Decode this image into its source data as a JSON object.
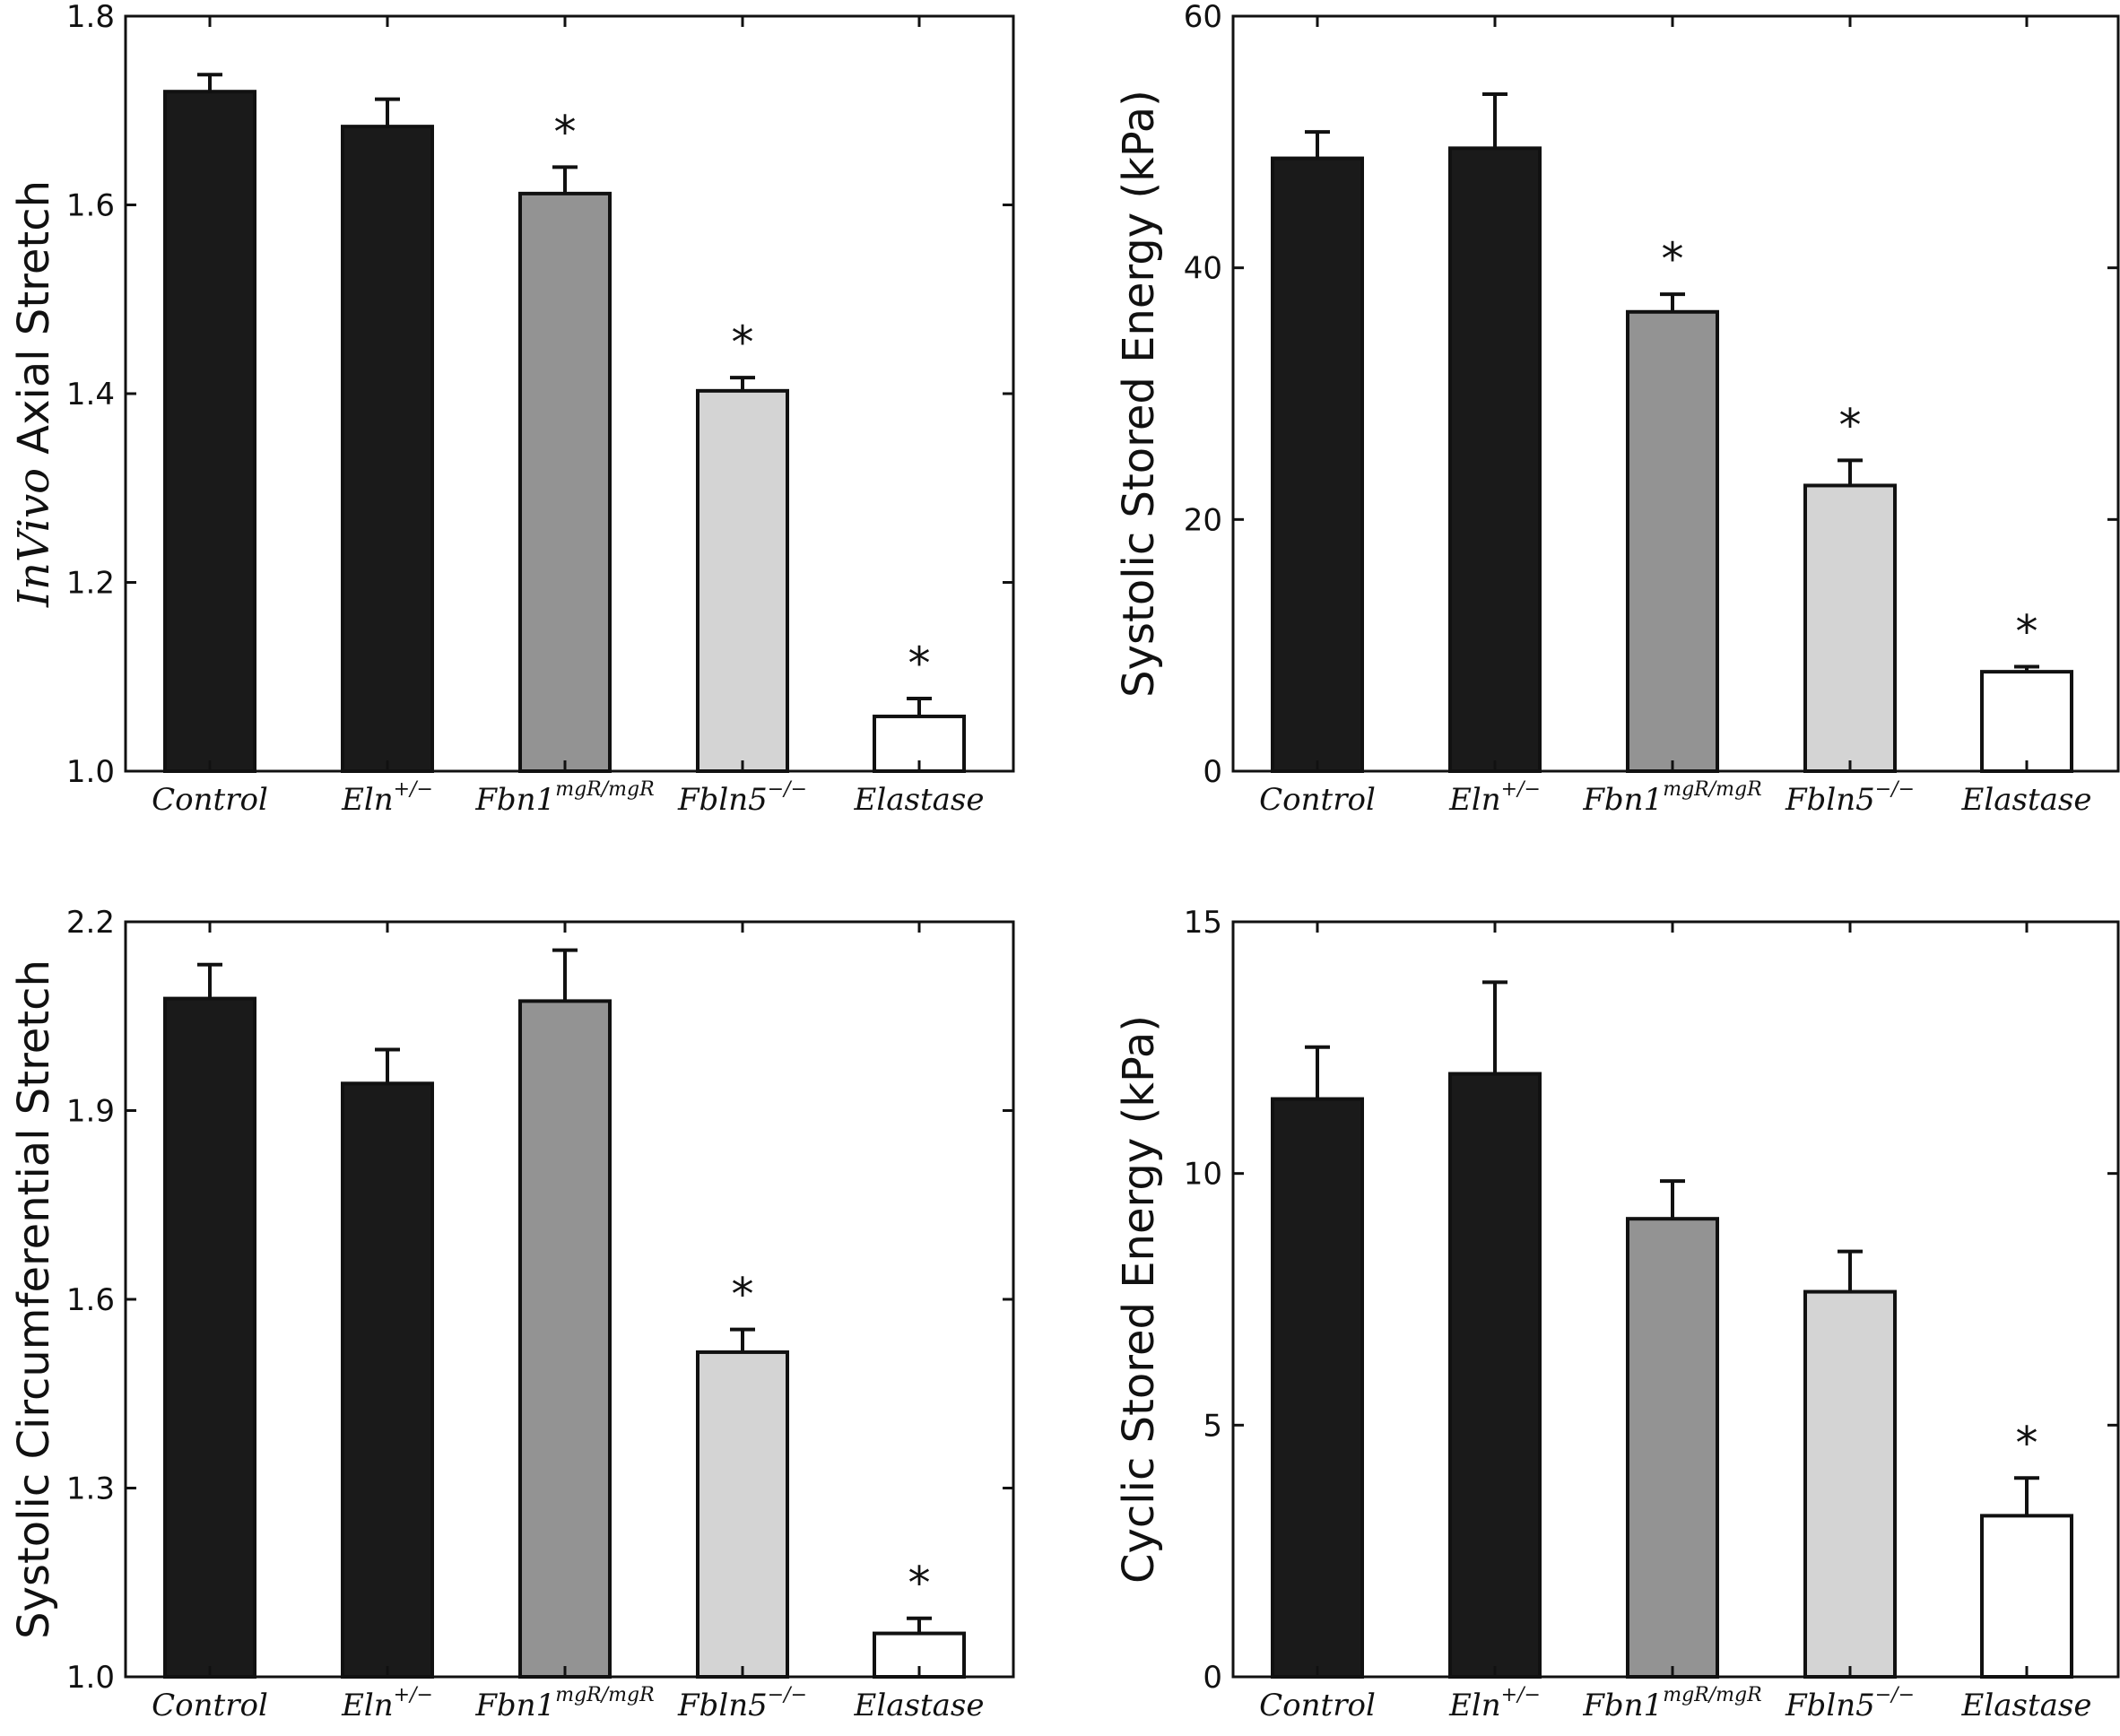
{
  "chart_data": [
    {
      "id": "invivo-axial",
      "type": "bar",
      "ylabel_italic": "InVivo",
      "ylabel": "Axial Stretch",
      "ylim": [
        1.0,
        1.8
      ],
      "yticks": [
        "1.0",
        "1.2",
        "1.4",
        "1.6",
        "1.8"
      ],
      "ytick_values": [
        1.0,
        1.2,
        1.4,
        1.6,
        1.8
      ],
      "categories": [
        {
          "base": "Control",
          "sup": ""
        },
        {
          "base": "Eln",
          "sup": "+/−"
        },
        {
          "base": "Fbn1",
          "sup": "mgR/mgR"
        },
        {
          "base": "Fbln5",
          "sup": "−/−"
        },
        {
          "base": "Elastase",
          "sup": ""
        }
      ],
      "values": [
        1.72,
        1.683,
        1.612,
        1.403,
        1.058
      ],
      "errors": [
        0.018,
        0.029,
        0.028,
        0.014,
        0.019
      ],
      "significant": [
        false,
        false,
        true,
        true,
        true
      ],
      "star": "*"
    },
    {
      "id": "systolic-energy",
      "type": "bar",
      "ylabel": "Systolic Stored Energy (kPa)",
      "ylim": [
        0,
        60
      ],
      "yticks": [
        "0",
        "20",
        "40",
        "60"
      ],
      "ytick_values": [
        0,
        20,
        40,
        60
      ],
      "categories": [
        {
          "base": "Control",
          "sup": ""
        },
        {
          "base": "Eln",
          "sup": "+/−"
        },
        {
          "base": "Fbn1",
          "sup": "mgR/mgR"
        },
        {
          "base": "Fbln5",
          "sup": "−/−"
        },
        {
          "base": "Elastase",
          "sup": ""
        }
      ],
      "values": [
        48.7,
        49.5,
        36.5,
        22.7,
        7.9
      ],
      "errors": [
        2.1,
        4.3,
        1.4,
        2.0,
        0.4
      ],
      "significant": [
        false,
        false,
        true,
        true,
        true
      ],
      "star": "*"
    },
    {
      "id": "systolic-circ",
      "type": "bar",
      "ylabel": "Systolic Circumferential Stretch",
      "ylim": [
        1.0,
        2.2
      ],
      "yticks": [
        "1.0",
        "1.3",
        "1.6",
        "1.9",
        "2.2"
      ],
      "ytick_values": [
        1.0,
        1.3,
        1.6,
        1.9,
        2.2
      ],
      "categories": [
        {
          "base": "Control",
          "sup": ""
        },
        {
          "base": "Eln",
          "sup": "+/−"
        },
        {
          "base": "Fbn1",
          "sup": "mgR/mgR"
        },
        {
          "base": "Fbln5",
          "sup": "−/−"
        },
        {
          "base": "Elastase",
          "sup": ""
        }
      ],
      "values": [
        2.078,
        1.943,
        2.074,
        1.516,
        1.069
      ],
      "errors": [
        0.054,
        0.054,
        0.081,
        0.036,
        0.024
      ],
      "significant": [
        false,
        false,
        false,
        true,
        true
      ],
      "star": "*"
    },
    {
      "id": "cyclic-energy",
      "type": "bar",
      "ylabel": "Cyclic Stored Energy (kPa)",
      "ylim": [
        0,
        15
      ],
      "yticks": [
        "0",
        "5",
        "10",
        "15"
      ],
      "ytick_values": [
        0,
        5,
        10,
        15
      ],
      "categories": [
        {
          "base": "Control",
          "sup": ""
        },
        {
          "base": "Eln",
          "sup": "+/−"
        },
        {
          "base": "Fbn1",
          "sup": "mgR/mgR"
        },
        {
          "base": "Fbln5",
          "sup": "−/−"
        },
        {
          "base": "Elastase",
          "sup": ""
        }
      ],
      "values": [
        11.48,
        11.98,
        9.1,
        7.65,
        3.2
      ],
      "errors": [
        1.03,
        1.82,
        0.75,
        0.8,
        0.75
      ],
      "significant": [
        false,
        false,
        false,
        false,
        true
      ],
      "star": "*"
    }
  ],
  "colors": {
    "bars": [
      "#1a1a1a",
      "#1a1a1a",
      "#939393",
      "#d4d4d4",
      "#ffffff"
    ],
    "edge": "#111111",
    "axes": "#111111"
  }
}
